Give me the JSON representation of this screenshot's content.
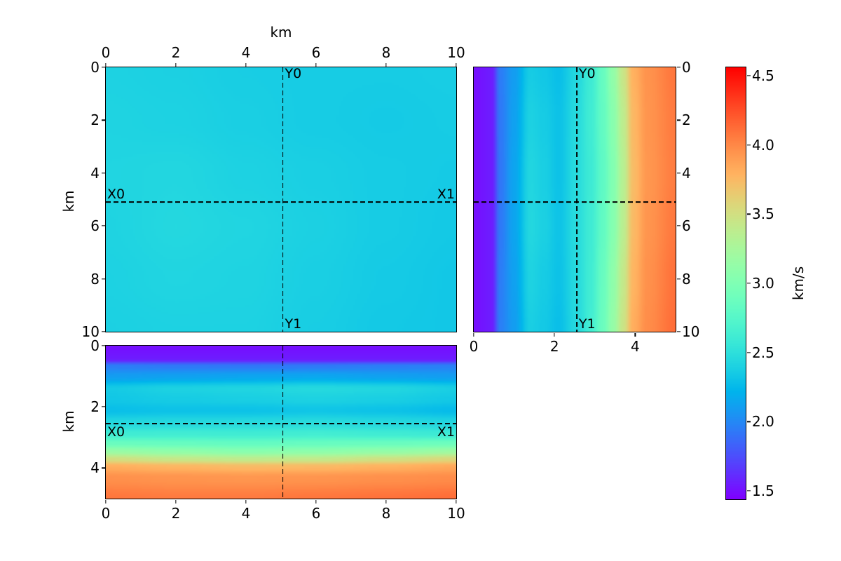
{
  "chart_data": {
    "type": "heatmap",
    "description": "Three orthogonal slices of a 3D seismic velocity model with rainbow colormap colorbar",
    "colormap": {
      "name": "rainbow",
      "vmin": 1.44,
      "vmax": 4.56
    },
    "colorbar": {
      "label": "km/s",
      "tick_values": [
        4.5,
        4.0,
        3.5,
        3.0,
        2.5,
        2.0,
        1.5
      ],
      "tick_labels": [
        "4.5",
        "4.0",
        "3.5",
        "3.0",
        "2.5",
        "2.0",
        "1.5"
      ]
    },
    "slice_markers": {
      "x_km": 5.05,
      "y_km": 5.1,
      "depth_km": 2.55
    },
    "panels": {
      "map": {
        "x_axis": {
          "side": "top",
          "range": [
            0,
            10
          ],
          "tick_values": [
            0,
            2,
            4,
            6,
            8,
            10
          ],
          "tick_labels": [
            "0",
            "2",
            "4",
            "6",
            "8",
            "10"
          ],
          "title": "km"
        },
        "y_axis": {
          "side": "left",
          "range": [
            0,
            10
          ],
          "tick_values": [
            0,
            2,
            4,
            6,
            8,
            10
          ],
          "tick_labels": [
            "0",
            "2",
            "4",
            "6",
            "8",
            "10"
          ],
          "title": "km"
        },
        "lines": [
          {
            "orient": "v",
            "value": 5.05
          },
          {
            "orient": "h",
            "value": 5.1
          }
        ],
        "annotations": [
          {
            "label": "Y0",
            "pos": "v-top"
          },
          {
            "label": "Y1",
            "pos": "v-bottom"
          },
          {
            "label": "X0",
            "pos": "h-left",
            "side": "above"
          },
          {
            "label": "X1",
            "pos": "h-right",
            "side": "above"
          }
        ],
        "grid": {
          "xs": [
            0,
            2,
            4,
            6,
            8,
            10
          ],
          "ys": [
            0,
            2,
            4,
            6,
            8,
            10
          ],
          "values": [
            [
              2.4,
              2.39,
              2.37,
              2.36,
              2.36,
              2.37
            ],
            [
              2.41,
              2.4,
              2.38,
              2.36,
              2.35,
              2.36
            ],
            [
              2.42,
              2.43,
              2.4,
              2.38,
              2.36,
              2.35
            ],
            [
              2.41,
              2.44,
              2.42,
              2.39,
              2.36,
              2.34
            ],
            [
              2.4,
              2.42,
              2.41,
              2.38,
              2.35,
              2.33
            ],
            [
              2.39,
              2.4,
              2.4,
              2.37,
              2.34,
              2.33
            ]
          ]
        }
      },
      "depth_slice_y": {
        "x_axis": {
          "side": "bottom",
          "range": [
            0,
            5
          ],
          "tick_values": [
            0,
            2,
            4
          ],
          "tick_labels": [
            "0",
            "2",
            "4"
          ],
          "title": ""
        },
        "y_axis": {
          "side": "right",
          "range": [
            0,
            10
          ],
          "tick_values": [
            0,
            2,
            4,
            6,
            8,
            10
          ],
          "tick_labels": [
            "0",
            "2",
            "4",
            "6",
            "8",
            "10"
          ],
          "title": ""
        },
        "lines": [
          {
            "orient": "v",
            "value": 2.55
          },
          {
            "orient": "h",
            "value": 5.1
          }
        ],
        "annotations": [
          {
            "label": "Y0",
            "pos": "v-top"
          },
          {
            "label": "Y1",
            "pos": "v-bottom"
          }
        ],
        "grid": {
          "xs": [
            0,
            0.45,
            0.65,
            1.0,
            1.4,
            1.75,
            2.1,
            2.55,
            2.9,
            3.2,
            3.45,
            3.7,
            3.95,
            4.3,
            5.0
          ],
          "ys": [
            0,
            2,
            4,
            6,
            8,
            10
          ],
          "values": [
            [
              1.5,
              1.55,
              1.95,
              2.1,
              2.36,
              2.33,
              2.28,
              2.44,
              2.6,
              2.85,
              3.12,
              3.45,
              3.8,
              3.95,
              4.08
            ],
            [
              1.5,
              1.55,
              1.93,
              2.12,
              2.4,
              2.36,
              2.3,
              2.46,
              2.62,
              2.83,
              3.06,
              3.38,
              3.76,
              3.94,
              4.06
            ],
            [
              1.5,
              1.55,
              1.92,
              2.14,
              2.43,
              2.38,
              2.3,
              2.47,
              2.6,
              2.8,
              3.02,
              3.34,
              3.74,
              3.93,
              4.05
            ],
            [
              1.5,
              1.55,
              1.93,
              2.14,
              2.44,
              2.39,
              2.31,
              2.47,
              2.61,
              2.82,
              3.04,
              3.36,
              3.75,
              3.94,
              4.07
            ],
            [
              1.5,
              1.55,
              1.95,
              2.12,
              2.41,
              2.36,
              2.3,
              2.46,
              2.62,
              2.86,
              3.1,
              3.42,
              3.78,
              3.96,
              4.1
            ],
            [
              1.5,
              1.55,
              1.96,
              2.1,
              2.38,
              2.34,
              2.28,
              2.45,
              2.63,
              2.88,
              3.14,
              3.46,
              3.82,
              3.98,
              4.12
            ]
          ]
        }
      },
      "depth_slice_x": {
        "x_axis": {
          "side": "bottom",
          "range": [
            0,
            10
          ],
          "tick_values": [
            0,
            2,
            4,
            6,
            8,
            10
          ],
          "tick_labels": [
            "0",
            "2",
            "4",
            "6",
            "8",
            "10"
          ],
          "title": ""
        },
        "y_axis": {
          "side": "left",
          "range": [
            0,
            5
          ],
          "tick_values": [
            0,
            2,
            4
          ],
          "tick_labels": [
            "0",
            "2",
            "4"
          ],
          "title": "km"
        },
        "lines": [
          {
            "orient": "v",
            "value": 5.05
          },
          {
            "orient": "h",
            "value": 2.55
          }
        ],
        "annotations": [
          {
            "label": "X0",
            "pos": "h-left",
            "side": "below"
          },
          {
            "label": "X1",
            "pos": "h-right",
            "side": "below"
          }
        ],
        "grid": {
          "xs": [
            0,
            2,
            4,
            6,
            8,
            10
          ],
          "ys": [
            0,
            0.45,
            0.65,
            1.0,
            1.4,
            1.75,
            2.1,
            2.55,
            2.9,
            3.2,
            3.45,
            3.7,
            3.95,
            4.3,
            5.0
          ],
          "values": [
            [
              1.5,
              1.5,
              1.5,
              1.5,
              1.5,
              1.5
            ],
            [
              1.55,
              1.55,
              1.55,
              1.55,
              1.55,
              1.55
            ],
            [
              1.95,
              1.93,
              1.92,
              1.93,
              1.95,
              1.96
            ],
            [
              2.1,
              2.12,
              2.14,
              2.15,
              2.12,
              2.1
            ],
            [
              2.35,
              2.4,
              2.42,
              2.45,
              2.43,
              2.38
            ],
            [
              2.33,
              2.36,
              2.38,
              2.4,
              2.38,
              2.34
            ],
            [
              2.28,
              2.3,
              2.3,
              2.32,
              2.3,
              2.26
            ],
            [
              2.45,
              2.46,
              2.47,
              2.48,
              2.46,
              2.44
            ],
            [
              2.62,
              2.63,
              2.62,
              2.64,
              2.62,
              2.6
            ],
            [
              2.88,
              2.86,
              2.84,
              2.86,
              2.88,
              2.9
            ],
            [
              3.15,
              3.1,
              3.05,
              3.08,
              3.12,
              3.18
            ],
            [
              3.5,
              3.42,
              3.38,
              3.4,
              3.48,
              3.55
            ],
            [
              3.82,
              3.78,
              3.75,
              3.76,
              3.8,
              3.85
            ],
            [
              3.96,
              3.94,
              3.93,
              3.94,
              3.96,
              3.98
            ],
            [
              4.08,
              4.06,
              4.06,
              4.08,
              4.1,
              4.12
            ]
          ]
        }
      }
    }
  }
}
